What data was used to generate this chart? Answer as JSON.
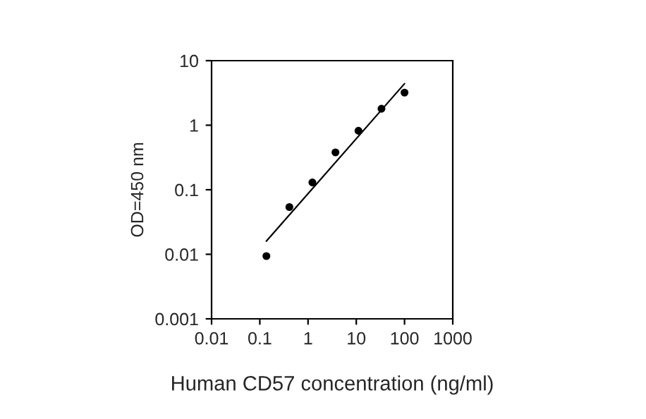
{
  "chart_data": {
    "type": "scatter",
    "xlabel": "Human CD57 concentration (ng/ml)",
    "ylabel": "OD=450 nm",
    "log": "xy",
    "x": [
      0.137,
      0.41,
      1.23,
      3.7,
      11.1,
      33.3,
      100
    ],
    "series": [
      {
        "color": "#000000",
        "marker": "circle",
        "values": [
          0.0094,
          0.054,
          0.13,
          0.38,
          0.82,
          1.8,
          3.2
        ]
      },
      {
        "type": "line",
        "color": "#000000",
        "marker": "none",
        "x": [
          0.137,
          100
        ],
        "values": [
          0.016,
          4.4
        ]
      }
    ],
    "grid": false,
    "xlim": [
      0.01,
      1000
    ],
    "xticks": [
      0.01,
      0.1,
      1,
      10,
      100,
      1000
    ],
    "ylim": [
      0.001,
      10
    ],
    "yticks": [
      0.001,
      0.01,
      0.1,
      1,
      10
    ]
  }
}
